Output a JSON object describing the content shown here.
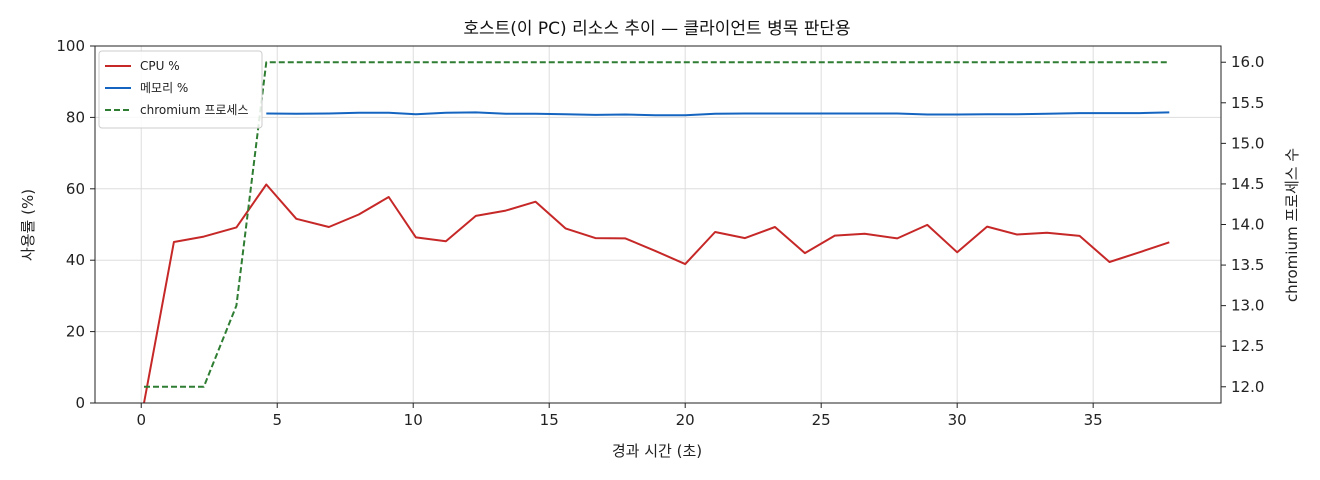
{
  "chart_data": {
    "type": "line",
    "title": "호스트(이 PC) 리소스 추이 — 클라이언트 병목 판단용",
    "xlabel": "경과 시간 (초)",
    "ylabel": "사용률 (%)",
    "y2label": "chromium 프로세스 수",
    "xlim": [
      -1.7,
      39.7
    ],
    "ylim": [
      0,
      100
    ],
    "y2lim": [
      11.8,
      16.2
    ],
    "xticks": [
      0,
      5,
      10,
      15,
      20,
      25,
      30,
      35
    ],
    "yticks": [
      0,
      20,
      40,
      60,
      80,
      100
    ],
    "y2ticks": [
      "12.0",
      "12.5",
      "13.0",
      "13.5",
      "14.0",
      "14.5",
      "15.0",
      "15.5",
      "16.0"
    ],
    "grid": true,
    "legend_position": "top-left",
    "series": [
      {
        "name": "CPU %",
        "axis": "left",
        "color": "#c62828",
        "style": "solid",
        "x": [
          0.1,
          1.2,
          2.3,
          3.5,
          4.6,
          5.7,
          6.9,
          8.0,
          9.1,
          10.1,
          11.2,
          12.3,
          13.4,
          14.5,
          15.6,
          16.7,
          17.8,
          18.9,
          20.0,
          21.1,
          22.2,
          23.3,
          24.4,
          25.5,
          26.6,
          27.8,
          28.9,
          30.0,
          31.1,
          32.2,
          33.3,
          34.5,
          35.6,
          36.7,
          37.8
        ],
        "values": [
          0,
          45.1,
          46.6,
          49.2,
          61.2,
          51.6,
          49.3,
          52.8,
          57.7,
          46.4,
          45.3,
          52.4,
          53.9,
          56.4,
          48.9,
          46.2,
          46.1,
          42.6,
          38.9,
          47.9,
          46.2,
          49.3,
          42.0,
          46.9,
          47.4,
          46.1,
          49.9,
          42.2,
          49.4,
          47.2,
          47.7,
          46.8,
          39.5,
          42.2,
          45.0
        ]
      },
      {
        "name": "메모리 %",
        "axis": "left",
        "color": "#1565c0",
        "style": "solid",
        "x": [
          4.6,
          5.7,
          6.9,
          8.0,
          9.1,
          10.1,
          11.2,
          12.3,
          13.4,
          14.5,
          15.6,
          16.7,
          17.8,
          18.9,
          20.0,
          21.1,
          22.2,
          23.3,
          24.4,
          25.5,
          26.6,
          27.8,
          28.9,
          30.0,
          31.1,
          32.2,
          33.3,
          34.5,
          35.6,
          36.7,
          37.8
        ],
        "values": [
          81.1,
          81.0,
          81.1,
          81.3,
          81.3,
          80.9,
          81.3,
          81.4,
          81.0,
          81.0,
          80.9,
          80.7,
          80.8,
          80.6,
          80.6,
          81.0,
          81.1,
          81.1,
          81.1,
          81.1,
          81.1,
          81.1,
          80.8,
          80.8,
          80.9,
          80.9,
          81.0,
          81.2,
          81.2,
          81.2,
          81.4
        ]
      },
      {
        "name": "chromium 프로세스",
        "axis": "right",
        "color": "#2e7d32",
        "style": "dashed",
        "x": [
          0.1,
          1.2,
          2.3,
          3.5,
          4.6,
          5.7,
          37.8
        ],
        "values": [
          12.0,
          12.0,
          12.0,
          13.0,
          16.0,
          16.0,
          16.0
        ]
      }
    ]
  }
}
